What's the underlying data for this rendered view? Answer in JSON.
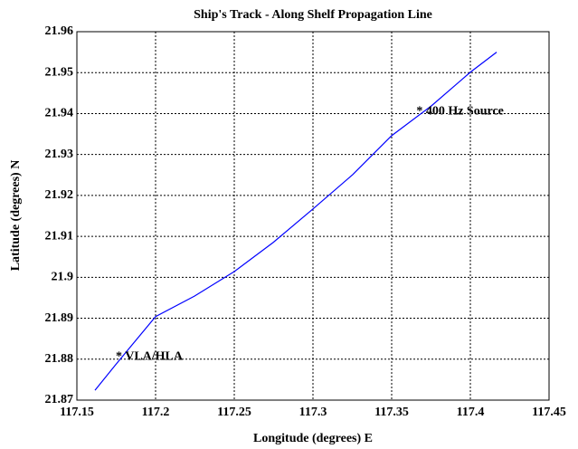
{
  "chart_data": {
    "type": "line",
    "title": "Ship's Track - Along Shelf Propagation Line",
    "x_label": "Longitude (degrees) E",
    "y_label": "Latitude (degrees) N",
    "series": [
      {
        "name": "Ship's Track",
        "color": "#0000ff",
        "x": [
          117.1615,
          117.176,
          117.2,
          117.2247,
          117.25,
          117.2747,
          117.3,
          117.3253,
          117.35,
          117.3753,
          117.4,
          117.4167
        ],
        "values": [
          21.8724,
          21.8793,
          21.8904,
          21.8954,
          21.9014,
          21.9085,
          21.9167,
          21.9251,
          21.9346,
          21.9419,
          21.9501,
          21.955
        ]
      }
    ],
    "annotations": [
      {
        "text": "* 400 Hz Source",
        "x": 117.368,
        "y": 21.9405
      },
      {
        "text": "* VLA/HLA",
        "x": 117.177,
        "y": 21.8805
      }
    ],
    "xlim": [
      117.15,
      117.45
    ],
    "xticks": [
      117.15,
      117.2,
      117.25,
      117.3,
      117.35,
      117.4,
      117.45
    ],
    "ylim": [
      21.87,
      21.96
    ],
    "yticks": [
      21.87,
      21.88,
      21.89,
      21.9,
      21.91,
      21.92,
      21.93,
      21.94,
      21.95,
      21.96
    ],
    "grid": true
  }
}
